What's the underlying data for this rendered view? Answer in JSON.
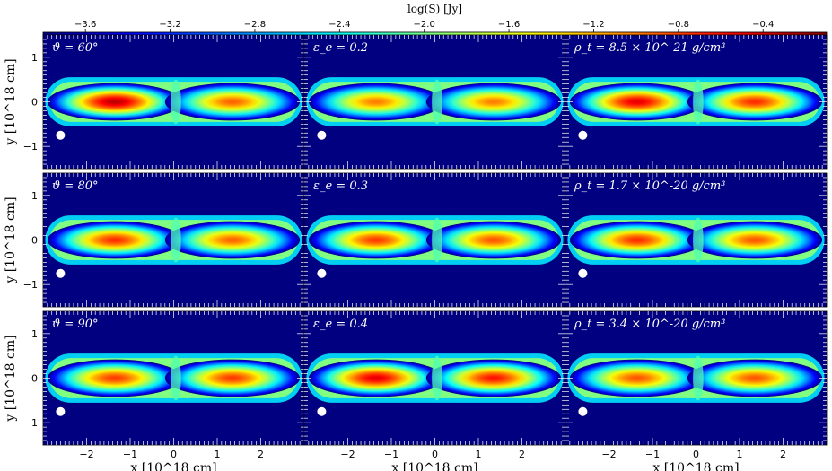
{
  "chart_data": {
    "type": "heatmap",
    "colorbar": {
      "title": "log(S) [Jy]",
      "ticks": [
        "-3.6",
        "-3.2",
        "-2.8",
        "-2.4",
        "-2.0",
        "-1.6",
        "-1.2",
        "-0.8",
        "-0.4"
      ],
      "range": [
        -3.8,
        -0.1
      ],
      "colormap": "jet"
    },
    "x_axis": {
      "label": "x [10^18 cm]",
      "ticks": [
        "-2",
        "-1",
        "0",
        "1",
        "2"
      ],
      "range": [
        -3.0,
        3.0
      ]
    },
    "y_axis": {
      "label": "y [10^18 cm]",
      "ticks": [
        "1",
        "0",
        "-1"
      ],
      "range": [
        -1.5,
        1.5
      ]
    },
    "panels": [
      {
        "row": 0,
        "col": 0,
        "label": "ϑ = 60°",
        "left_lobe_peak": -0.3,
        "right_lobe_peak": -0.9
      },
      {
        "row": 0,
        "col": 1,
        "label": "ε_e = 0.2",
        "left_lobe_peak": -1.0,
        "right_lobe_peak": -1.0
      },
      {
        "row": 0,
        "col": 2,
        "label": "ρ_t = 8.5 × 10^-21 g/cm³",
        "left_lobe_peak": -0.45,
        "right_lobe_peak": -0.7
      },
      {
        "row": 1,
        "col": 0,
        "label": "ϑ = 80°",
        "left_lobe_peak": -0.7,
        "right_lobe_peak": -0.9
      },
      {
        "row": 1,
        "col": 1,
        "label": "ε_e = 0.3",
        "left_lobe_peak": -0.75,
        "right_lobe_peak": -0.85
      },
      {
        "row": 1,
        "col": 2,
        "label": "ρ_t = 1.7 × 10^-20 g/cm³",
        "left_lobe_peak": -0.7,
        "right_lobe_peak": -0.85
      },
      {
        "row": 2,
        "col": 0,
        "label": "ϑ = 90°",
        "left_lobe_peak": -0.75,
        "right_lobe_peak": -0.75
      },
      {
        "row": 2,
        "col": 1,
        "label": "ε_e = 0.4",
        "left_lobe_peak": -0.45,
        "right_lobe_peak": -0.6
      },
      {
        "row": 2,
        "col": 2,
        "label": "ρ_t = 3.4 × 10^-20 g/cm³",
        "left_lobe_peak": -0.85,
        "right_lobe_peak": -0.85
      }
    ],
    "background_level": -3.8,
    "beam_marker": {
      "x": -2.6,
      "y": -0.75
    }
  }
}
